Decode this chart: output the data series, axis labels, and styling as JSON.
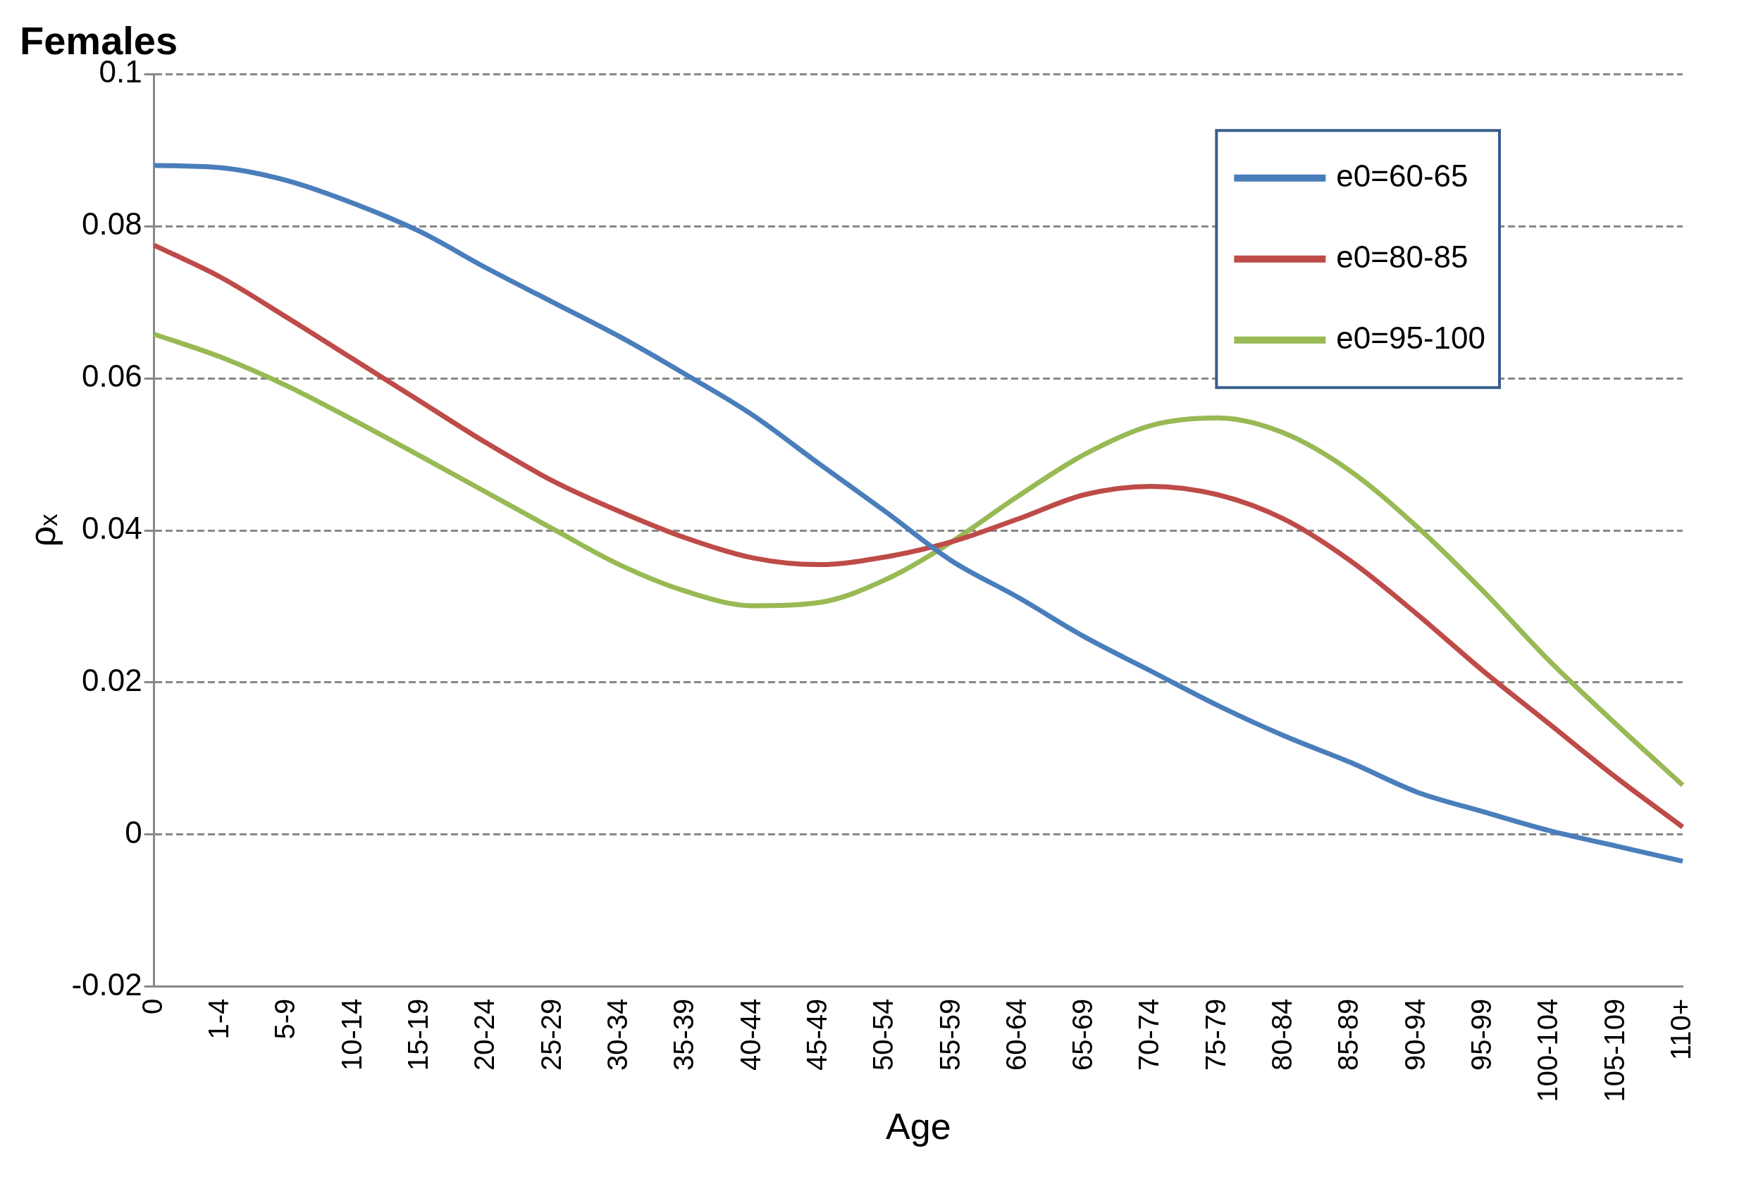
{
  "chart_data": {
    "type": "line",
    "title": "Females",
    "xlabel": "Age",
    "ylabel": "ρₓ",
    "categories": [
      "0",
      "1-4",
      "5-9",
      "10-14",
      "15-19",
      "20-24",
      "25-29",
      "30-34",
      "35-39",
      "40-44",
      "45-49",
      "50-54",
      "55-59",
      "60-64",
      "65-69",
      "70-74",
      "75-79",
      "80-84",
      "85-89",
      "90-94",
      "95-99",
      "100-104",
      "105-109",
      "110+"
    ],
    "series": [
      {
        "name": "e0=60-65",
        "color": "#4a7ebb",
        "values": [
          0.088,
          0.0877,
          0.086,
          0.083,
          0.0793,
          0.0745,
          0.07,
          0.0655,
          0.0605,
          0.0552,
          0.0488,
          0.0425,
          0.036,
          0.0312,
          0.026,
          0.0215,
          0.017,
          0.013,
          0.0095,
          0.0056,
          0.003,
          0.0005,
          -0.0015,
          -0.0035
        ]
      },
      {
        "name": "e0=80-85",
        "color": "#be4b48",
        "values": [
          0.0775,
          0.0733,
          0.068,
          0.0625,
          0.057,
          0.0515,
          0.0465,
          0.0425,
          0.039,
          0.0364,
          0.0355,
          0.0365,
          0.0385,
          0.0415,
          0.0447,
          0.0458,
          0.0447,
          0.0415,
          0.036,
          0.029,
          0.0215,
          0.0145,
          0.0075,
          0.001
        ]
      },
      {
        "name": "e0=95-100",
        "color": "#98b954",
        "values": [
          0.0658,
          0.0628,
          0.059,
          0.0545,
          0.0498,
          0.045,
          0.0402,
          0.0355,
          0.032,
          0.0301,
          0.0305,
          0.0335,
          0.0385,
          0.0445,
          0.05,
          0.0538,
          0.0548,
          0.0528,
          0.0478,
          0.0405,
          0.032,
          0.0228,
          0.0145,
          0.0065
        ]
      }
    ],
    "ylim": [
      -0.02,
      0.1
    ],
    "yticks": [
      -0.02,
      0,
      0.02,
      0.04,
      0.06,
      0.08,
      0.1
    ],
    "grid": "y",
    "legend": "top right",
    "marker": "none",
    "line_style": "solid"
  }
}
